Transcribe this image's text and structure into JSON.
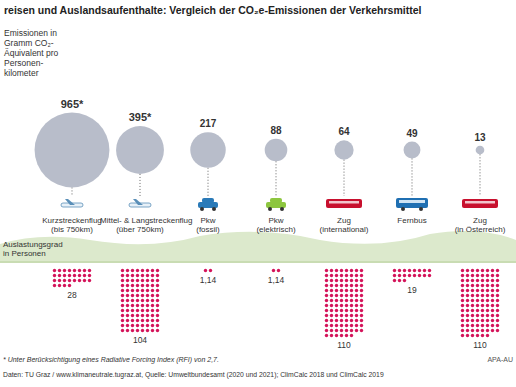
{
  "chart_data": {
    "type": "bubble",
    "title": "reisen und Auslandsaufenthalte: Vergleich der CO₂e-Emissionen der Verkehrsmittel",
    "y_label": "Emissionen in\nGramm CO₂-\nÄquivalent pro\nPersonen-\nkilometer",
    "categories": [
      "Kurzstreckenflug\n(bis 750km)",
      "Mittel- & Langstreckenflug\n(über 750km)",
      "Pkw\n(fossil)",
      "Pkw\n(elektrisch)",
      "Zug\n(international)",
      "Fernbus",
      "Zug\n(in Österreich)"
    ],
    "values": [
      965,
      395,
      217,
      88,
      64,
      49,
      13
    ],
    "value_labels": [
      "965*",
      "395*",
      "217",
      "88",
      "64",
      "49",
      "13"
    ],
    "color": "#b8bdca",
    "data_labels": true,
    "occupancy": {
      "label": "Auslastungsgrad\nin Personen",
      "values": [
        28,
        104,
        1.14,
        1.14,
        110,
        19,
        110
      ],
      "value_labels": [
        "28",
        "104",
        "1,14",
        "1,14",
        "110",
        "19",
        "110"
      ],
      "color": "#d4145a"
    },
    "footnote": "* Unter Berücksichtigung eines Radiative Forcing Index (RFI) von 2,7.",
    "source": "Daten: TU Graz / www.klimaneutrale.tugraz.at, Quelle: Umweltbundesamt (2020 und 2021); ClimCalc 2018 und ClimCalc 2019",
    "credit": "APA-AU"
  }
}
